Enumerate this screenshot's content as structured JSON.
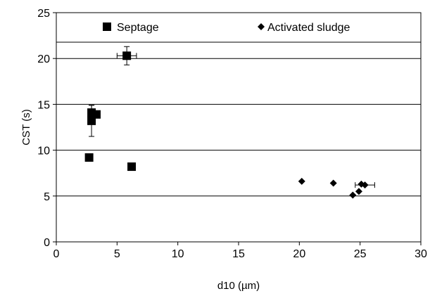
{
  "chart_data": {
    "type": "scatter",
    "xlabel": "d10 (µm)",
    "ylabel": "CST (s)",
    "xlim": [
      0,
      30
    ],
    "ylim": [
      0,
      25
    ],
    "xticks": [
      "0",
      "5",
      "10",
      "15",
      "20",
      "25",
      "30"
    ],
    "yticks": [
      "0",
      "5",
      "10",
      "15",
      "20",
      "25"
    ],
    "grid": "horizontal",
    "legend_position": "top",
    "series": [
      {
        "name": "Septage",
        "marker": "square",
        "color": "#000000",
        "points": [
          {
            "x": 5.8,
            "y": 20.3,
            "xerr": 0.8,
            "yerr": 1.0
          },
          {
            "x": 2.9,
            "y": 14.1,
            "yerr": 0.8
          },
          {
            "x": 3.3,
            "y": 13.9
          },
          {
            "x": 2.9,
            "y": 13.2,
            "yerr": 1.7
          },
          {
            "x": 2.7,
            "y": 9.2
          },
          {
            "x": 6.2,
            "y": 8.2
          }
        ]
      },
      {
        "name": "Activated sludge",
        "marker": "diamond",
        "color": "#000000",
        "points": [
          {
            "x": 20.2,
            "y": 6.6
          },
          {
            "x": 22.8,
            "y": 6.4
          },
          {
            "x": 25.1,
            "y": 6.3
          },
          {
            "x": 25.4,
            "y": 6.2,
            "xerr": 0.8
          },
          {
            "x": 24.9,
            "y": 5.5
          },
          {
            "x": 24.4,
            "y": 5.1
          }
        ]
      }
    ]
  }
}
